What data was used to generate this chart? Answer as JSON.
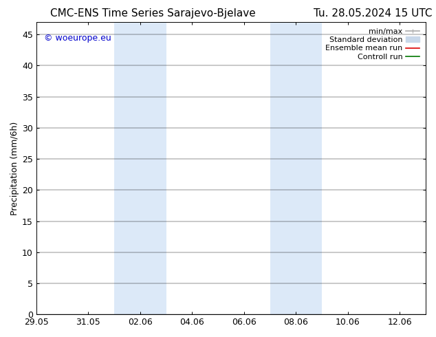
{
  "title_left": "CMC-ENS Time Series Sarajevo-Bjelave",
  "title_right": "Tu. 28.05.2024 15 UTC",
  "ylabel": "Precipitation (mm/6h)",
  "watermark": "© woeurope.eu",
  "watermark_color": "#0000cc",
  "ylim": [
    0,
    47
  ],
  "yticks": [
    0,
    5,
    10,
    15,
    20,
    25,
    30,
    35,
    40,
    45
  ],
  "xlim": [
    0,
    15
  ],
  "xtick_labels": [
    "29.05",
    "31.05",
    "02.06",
    "04.06",
    "06.06",
    "08.06",
    "10.06",
    "12.06"
  ],
  "xtick_positions_days": [
    0,
    2,
    4,
    6,
    8,
    10,
    12,
    14
  ],
  "shade_bands": [
    {
      "start_day": 3.0,
      "end_day": 5.0
    },
    {
      "start_day": 9.0,
      "end_day": 11.0
    }
  ],
  "shade_color": "#dce9f8",
  "background_color": "#ffffff",
  "legend_items": [
    {
      "label": "min/max",
      "color": "#aaaaaa",
      "lw": 1.2
    },
    {
      "label": "Standard deviation",
      "color": "#c8d8ea",
      "lw": 7
    },
    {
      "label": "Ensemble mean run",
      "color": "#dd0000",
      "lw": 1.2
    },
    {
      "label": "Controll run",
      "color": "#007700",
      "lw": 1.2
    }
  ],
  "title_fontsize": 11,
  "tick_fontsize": 9,
  "label_fontsize": 9,
  "legend_fontsize": 8
}
